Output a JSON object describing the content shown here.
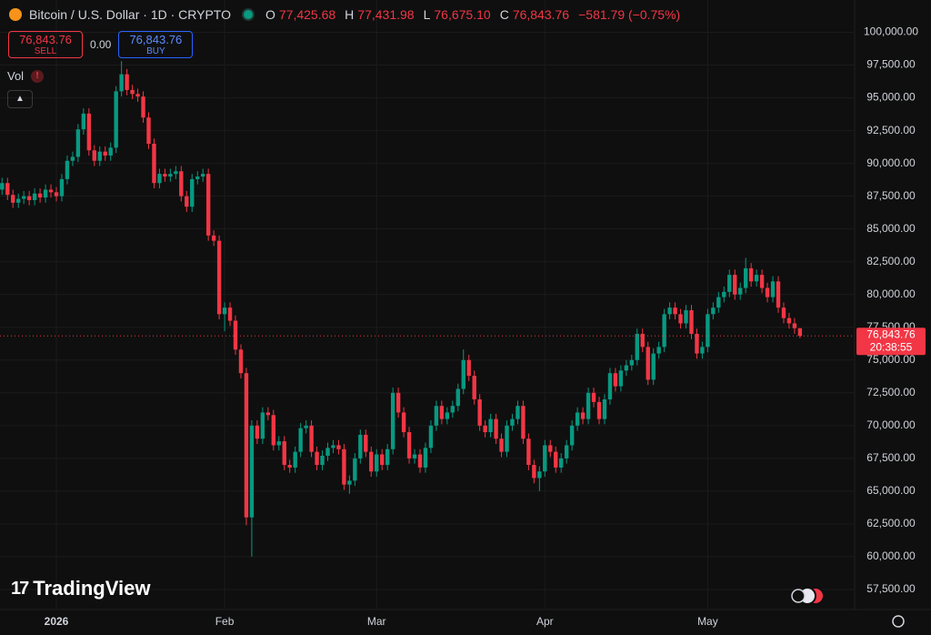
{
  "header": {
    "title": "Bitcoin / U.S. Dollar · 1D · CRYPTO",
    "open_label": "O",
    "open": "77,425.68",
    "high_label": "H",
    "high": "77,431.98",
    "low_label": "L",
    "low": "76,675.10",
    "close_label": "C",
    "close": "76,843.76",
    "change": "−581.79 (−0.75%)"
  },
  "trade": {
    "sell_price": "76,843.76",
    "sell": "SELL",
    "spread": "0.00",
    "buy_price": "76,843.76",
    "buy": "BUY"
  },
  "volume_label": "Vol",
  "logo": "TradingView",
  "price_tag": {
    "price": "76,843.76",
    "countdown": "20:38:55"
  },
  "chart_data": {
    "type": "candlestick",
    "up_color": "#089981",
    "down_color": "#f23645",
    "grid": true,
    "ylim": [
      55900,
      100800
    ],
    "yticks": [
      {
        "value": 57500,
        "label": "57,500.00"
      },
      {
        "value": 60000,
        "label": "60,000.00"
      },
      {
        "value": 62500,
        "label": "62,500.00"
      },
      {
        "value": 65000,
        "label": "65,000.00"
      },
      {
        "value": 67500,
        "label": "67,500.00"
      },
      {
        "value": 70000,
        "label": "70,000.00"
      },
      {
        "value": 72500,
        "label": "72,500.00"
      },
      {
        "value": 75000,
        "label": "75,000.00"
      },
      {
        "value": 77500,
        "label": "77,500.00"
      },
      {
        "value": 80000,
        "label": "80,000.00"
      },
      {
        "value": 82500,
        "label": "82,500.00"
      },
      {
        "value": 85000,
        "label": "85,000.00"
      },
      {
        "value": 87500,
        "label": "87,500.00"
      },
      {
        "value": 90000,
        "label": "90,000.00"
      },
      {
        "value": 92500,
        "label": "92,500.00"
      },
      {
        "value": 95000,
        "label": "95,000.00"
      },
      {
        "value": 97500,
        "label": "97,500.00"
      },
      {
        "value": 100000,
        "label": "100,000.00"
      }
    ],
    "categories": [
      null,
      null,
      null,
      null,
      null,
      null,
      null,
      null,
      null,
      null,
      "2026",
      null,
      null,
      null,
      null,
      null,
      null,
      null,
      null,
      null,
      null,
      null,
      null,
      null,
      null,
      null,
      null,
      null,
      null,
      null,
      null,
      null,
      null,
      null,
      null,
      null,
      null,
      null,
      null,
      null,
      null,
      "Feb",
      null,
      null,
      null,
      null,
      null,
      null,
      null,
      null,
      null,
      null,
      null,
      null,
      null,
      null,
      null,
      null,
      null,
      null,
      null,
      null,
      null,
      null,
      null,
      null,
      null,
      null,
      null,
      "Mar",
      null,
      null,
      null,
      null,
      null,
      null,
      null,
      null,
      null,
      null,
      null,
      null,
      null,
      null,
      null,
      null,
      null,
      null,
      null,
      null,
      null,
      null,
      null,
      null,
      null,
      null,
      null,
      null,
      null,
      null,
      "Apr",
      null,
      null,
      null,
      null,
      null,
      null,
      null,
      null,
      null,
      null,
      null,
      null,
      null,
      null,
      null,
      null,
      null,
      null,
      null,
      null,
      null,
      null,
      null,
      null,
      null,
      null,
      null,
      null,
      null,
      "May",
      null,
      null,
      null,
      null,
      null,
      null,
      null,
      null,
      null,
      null,
      null,
      null,
      null,
      null,
      null,
      null,
      null
    ],
    "ohlc": [
      [
        88000,
        88900,
        87600,
        88500
      ],
      [
        88500,
        88900,
        87200,
        87600
      ],
      [
        87600,
        88000,
        86600,
        87000
      ],
      [
        87000,
        87700,
        86600,
        87300
      ],
      [
        87300,
        87900,
        86900,
        87500
      ],
      [
        87500,
        87900,
        86800,
        87200
      ],
      [
        87200,
        88100,
        86800,
        87700
      ],
      [
        87700,
        88100,
        87000,
        87400
      ],
      [
        87400,
        88400,
        87000,
        88000
      ],
      [
        88000,
        88400,
        87400,
        87800
      ],
      [
        87800,
        88200,
        87100,
        87500
      ],
      [
        87500,
        89200,
        87100,
        88800
      ],
      [
        88800,
        90600,
        88400,
        90200
      ],
      [
        90200,
        90900,
        89800,
        90500
      ],
      [
        90500,
        93000,
        90100,
        92600
      ],
      [
        92600,
        94200,
        92200,
        93800
      ],
      [
        93800,
        94200,
        90600,
        91000
      ],
      [
        91000,
        91400,
        89800,
        90200
      ],
      [
        90200,
        91300,
        89800,
        90900
      ],
      [
        90900,
        91300,
        90200,
        90600
      ],
      [
        90600,
        91600,
        90200,
        91200
      ],
      [
        91200,
        95900,
        90800,
        95500
      ],
      [
        95500,
        97800,
        95100,
        96800
      ],
      [
        96800,
        97200,
        95200,
        95600
      ],
      [
        95600,
        96000,
        94900,
        95300
      ],
      [
        95300,
        95700,
        94700,
        95100
      ],
      [
        95100,
        95500,
        93100,
        93500
      ],
      [
        93500,
        93900,
        91100,
        91500
      ],
      [
        91500,
        91900,
        88100,
        88500
      ],
      [
        88500,
        89600,
        88100,
        89200
      ],
      [
        89200,
        89600,
        88600,
        89000
      ],
      [
        89000,
        89600,
        88600,
        89200
      ],
      [
        89200,
        89800,
        88800,
        89400
      ],
      [
        89400,
        89800,
        87100,
        87500
      ],
      [
        87500,
        87900,
        86300,
        86700
      ],
      [
        86700,
        89200,
        86300,
        88800
      ],
      [
        88800,
        89400,
        88400,
        89000
      ],
      [
        89000,
        89600,
        88600,
        89200
      ],
      [
        89200,
        89600,
        84100,
        84500
      ],
      [
        84500,
        84900,
        83700,
        84100
      ],
      [
        84100,
        84500,
        78100,
        78500
      ],
      [
        78500,
        79400,
        77200,
        79000
      ],
      [
        79000,
        79400,
        77600,
        78000
      ],
      [
        78000,
        78400,
        75400,
        75800
      ],
      [
        75800,
        76200,
        73600,
        74000
      ],
      [
        74000,
        74400,
        62400,
        63000
      ],
      [
        63000,
        70400,
        60000,
        70000
      ],
      [
        70000,
        70400,
        68600,
        69000
      ],
      [
        69000,
        71400,
        68600,
        71000
      ],
      [
        71000,
        71400,
        70400,
        70800
      ],
      [
        70800,
        71200,
        68100,
        68500
      ],
      [
        68500,
        69200,
        68100,
        68800
      ],
      [
        68800,
        69200,
        66600,
        67000
      ],
      [
        67000,
        67400,
        66400,
        66800
      ],
      [
        66800,
        68400,
        66400,
        68000
      ],
      [
        68000,
        70200,
        67600,
        69800
      ],
      [
        69800,
        70400,
        69400,
        70000
      ],
      [
        70000,
        70400,
        67600,
        68000
      ],
      [
        68000,
        68400,
        66600,
        67000
      ],
      [
        67000,
        68100,
        66600,
        67700
      ],
      [
        67700,
        68700,
        67300,
        68300
      ],
      [
        68300,
        68900,
        67900,
        68500
      ],
      [
        68500,
        68900,
        67800,
        68200
      ],
      [
        68200,
        68600,
        65100,
        65500
      ],
      [
        65500,
        66200,
        64800,
        65800
      ],
      [
        65800,
        67900,
        65400,
        67500
      ],
      [
        67500,
        69700,
        67100,
        69300
      ],
      [
        69300,
        69700,
        67600,
        68000
      ],
      [
        68000,
        68400,
        66100,
        66500
      ],
      [
        66500,
        68200,
        66100,
        67800
      ],
      [
        67800,
        68200,
        66600,
        67000
      ],
      [
        67000,
        68600,
        66600,
        68200
      ],
      [
        68200,
        72900,
        67800,
        72500
      ],
      [
        72500,
        72900,
        70600,
        71000
      ],
      [
        71000,
        71400,
        69100,
        69500
      ],
      [
        69500,
        69900,
        67100,
        67500
      ],
      [
        67500,
        68200,
        67100,
        67800
      ],
      [
        67800,
        68200,
        66400,
        66800
      ],
      [
        66800,
        68700,
        66400,
        68300
      ],
      [
        68300,
        70400,
        67900,
        70000
      ],
      [
        70000,
        71900,
        69600,
        71500
      ],
      [
        71500,
        71900,
        70100,
        70500
      ],
      [
        70500,
        71400,
        70100,
        71000
      ],
      [
        71000,
        71900,
        70600,
        71500
      ],
      [
        71500,
        73200,
        71100,
        72800
      ],
      [
        72800,
        75800,
        72400,
        75000
      ],
      [
        75000,
        75400,
        73400,
        73800
      ],
      [
        73800,
        74200,
        71600,
        72000
      ],
      [
        72000,
        72400,
        69600,
        70000
      ],
      [
        70000,
        70400,
        69100,
        69500
      ],
      [
        69500,
        70900,
        69100,
        70500
      ],
      [
        70500,
        70900,
        68600,
        69000
      ],
      [
        69000,
        69400,
        67600,
        68000
      ],
      [
        68000,
        70400,
        67600,
        70000
      ],
      [
        70000,
        70900,
        69600,
        70500
      ],
      [
        70500,
        71900,
        70100,
        71500
      ],
      [
        71500,
        71900,
        68600,
        69000
      ],
      [
        69000,
        69400,
        66600,
        67000
      ],
      [
        67000,
        67400,
        65600,
        66000
      ],
      [
        66000,
        66900,
        65000,
        66500
      ],
      [
        66500,
        68900,
        66100,
        68500
      ],
      [
        68500,
        68900,
        67600,
        68000
      ],
      [
        68000,
        68400,
        66400,
        66800
      ],
      [
        66800,
        67900,
        66400,
        67500
      ],
      [
        67500,
        68900,
        67100,
        68500
      ],
      [
        68500,
        70400,
        68100,
        70000
      ],
      [
        70000,
        71400,
        69600,
        71000
      ],
      [
        71000,
        71400,
        70100,
        70500
      ],
      [
        70500,
        72900,
        70100,
        72500
      ],
      [
        72500,
        72900,
        71400,
        71800
      ],
      [
        71800,
        72200,
        70100,
        70500
      ],
      [
        70500,
        72400,
        70100,
        72000
      ],
      [
        72000,
        74400,
        71600,
        74000
      ],
      [
        74000,
        74400,
        72600,
        73000
      ],
      [
        73000,
        74600,
        72600,
        74200
      ],
      [
        74200,
        75000,
        73800,
        74600
      ],
      [
        74600,
        75400,
        74200,
        75000
      ],
      [
        75000,
        77400,
        74600,
        77000
      ],
      [
        77000,
        77400,
        75600,
        76000
      ],
      [
        76000,
        76400,
        73100,
        73500
      ],
      [
        73500,
        75900,
        73100,
        75500
      ],
      [
        75500,
        76400,
        75100,
        76000
      ],
      [
        76000,
        78900,
        75600,
        78500
      ],
      [
        78500,
        79400,
        78100,
        79000
      ],
      [
        79000,
        79400,
        78100,
        78500
      ],
      [
        78500,
        78900,
        77400,
        77800
      ],
      [
        77800,
        79200,
        77400,
        78800
      ],
      [
        78800,
        79200,
        76600,
        77000
      ],
      [
        77000,
        77400,
        75100,
        75500
      ],
      [
        75500,
        76400,
        75100,
        76000
      ],
      [
        76000,
        78900,
        75600,
        78500
      ],
      [
        78500,
        79400,
        78100,
        79000
      ],
      [
        79000,
        80200,
        78600,
        79800
      ],
      [
        79800,
        80600,
        79400,
        80200
      ],
      [
        80200,
        81900,
        79800,
        81500
      ],
      [
        81500,
        81900,
        79600,
        80000
      ],
      [
        80000,
        80900,
        79600,
        80500
      ],
      [
        80500,
        82800,
        80100,
        82000
      ],
      [
        82000,
        82400,
        80600,
        81000
      ],
      [
        81000,
        81900,
        80600,
        81500
      ],
      [
        81500,
        81900,
        80100,
        80500
      ],
      [
        80500,
        80900,
        79400,
        79800
      ],
      [
        79800,
        81400,
        79400,
        81000
      ],
      [
        81000,
        81400,
        78600,
        79000
      ],
      [
        79000,
        79400,
        77800,
        78200
      ],
      [
        78200,
        78600,
        77400,
        77800
      ],
      [
        77800,
        78200,
        77000,
        77425.68
      ],
      [
        77425.68,
        77431.98,
        76675.1,
        76843.76
      ]
    ]
  }
}
